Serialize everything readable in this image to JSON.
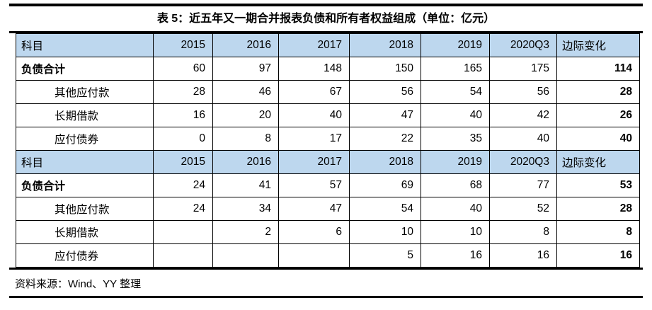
{
  "title": "表 5：近五年又一期合并报表负债和所有者权益组成（单位：亿元）",
  "source": "资料来源：Wind、YY 整理",
  "colors": {
    "header_bg": "#bdd7ee",
    "border": "#000000",
    "text": "#000000",
    "background": "#ffffff"
  },
  "table": {
    "rows": [
      {
        "type": "header",
        "cells": [
          "科目",
          "2015",
          "2016",
          "2017",
          "2018",
          "2019",
          "2020Q3",
          "边际变化"
        ]
      },
      {
        "type": "total",
        "cells": [
          "负债合计",
          "60",
          "97",
          "148",
          "150",
          "165",
          "175",
          "114"
        ]
      },
      {
        "type": "item",
        "cells": [
          "其他应付款",
          "28",
          "46",
          "67",
          "56",
          "54",
          "56",
          "28"
        ]
      },
      {
        "type": "item",
        "cells": [
          "长期借款",
          "16",
          "20",
          "40",
          "47",
          "40",
          "42",
          "26"
        ]
      },
      {
        "type": "item",
        "cells": [
          "应付债券",
          "0",
          "8",
          "17",
          "22",
          "35",
          "40",
          "40"
        ]
      },
      {
        "type": "header",
        "cells": [
          "科目",
          "2015",
          "2016",
          "2017",
          "2018",
          "2019",
          "2020Q3",
          "边际变化"
        ]
      },
      {
        "type": "total",
        "cells": [
          "负债合计",
          "24",
          "41",
          "57",
          "69",
          "68",
          "77",
          "53"
        ]
      },
      {
        "type": "item",
        "cells": [
          "其他应付款",
          "24",
          "34",
          "47",
          "54",
          "40",
          "52",
          "28"
        ]
      },
      {
        "type": "item",
        "cells": [
          "长期借款",
          "",
          "2",
          "6",
          "10",
          "10",
          "8",
          "8"
        ]
      },
      {
        "type": "item",
        "cells": [
          "应付债券",
          "",
          "",
          "",
          "5",
          "16",
          "16",
          "16"
        ]
      }
    ]
  }
}
